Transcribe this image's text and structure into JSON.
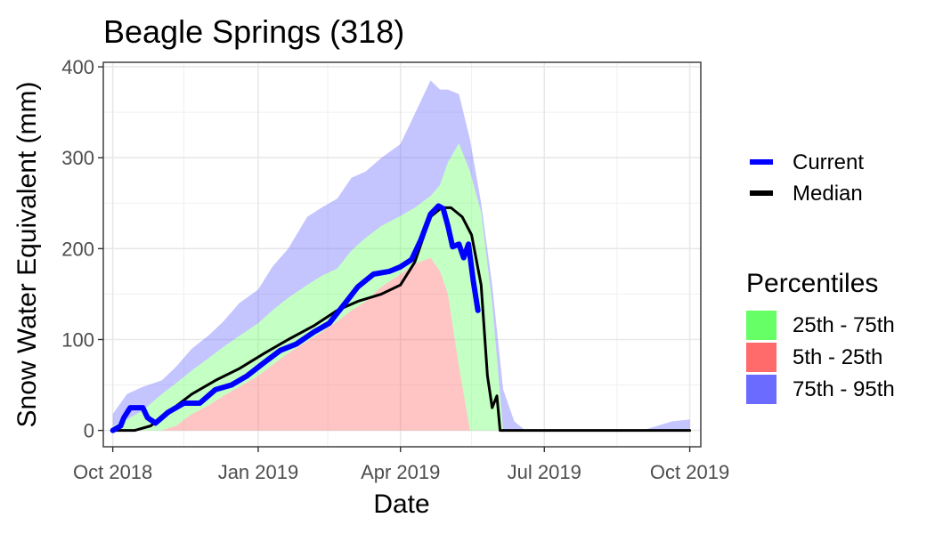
{
  "chart_data": {
    "type": "area",
    "title": "Beagle Springs (318)",
    "xlabel": "Date",
    "ylabel": "Snow Water Equivalent (mm)",
    "xlim": [
      "2018-09-25",
      "2019-10-08"
    ],
    "ylim": [
      -18,
      405
    ],
    "x_ticks": [
      {
        "date": "2018-10-01",
        "label": "Oct 2018"
      },
      {
        "date": "2019-01-01",
        "label": "Jan 2019"
      },
      {
        "date": "2019-04-01",
        "label": "Apr 2019"
      },
      {
        "date": "2019-07-01",
        "label": "Jul 2019"
      },
      {
        "date": "2019-10-01",
        "label": "Oct 2019"
      }
    ],
    "x_minor_ticks": [
      "2018-11-15",
      "2019-02-14",
      "2019-05-16",
      "2019-08-16"
    ],
    "y_ticks": [
      0,
      100,
      200,
      300,
      400
    ],
    "y_minor_ticks": [
      50,
      150,
      250,
      350
    ],
    "grid": true,
    "legend_position": "right",
    "x": [
      "2018-10-01",
      "2018-10-10",
      "2018-10-20",
      "2018-11-01",
      "2018-11-10",
      "2018-11-20",
      "2018-12-01",
      "2018-12-10",
      "2018-12-20",
      "2019-01-01",
      "2019-01-10",
      "2019-01-20",
      "2019-02-01",
      "2019-02-10",
      "2019-02-20",
      "2019-03-01",
      "2019-03-10",
      "2019-03-20",
      "2019-04-01",
      "2019-04-10",
      "2019-04-20",
      "2019-04-26",
      "2019-05-01",
      "2019-05-08",
      "2019-05-15",
      "2019-05-22",
      "2019-05-29",
      "2019-06-05",
      "2019-06-12",
      "2019-06-19",
      "2019-06-26",
      "2019-07-10",
      "2019-08-01",
      "2019-09-01",
      "2019-09-20",
      "2019-10-01"
    ],
    "bands": [
      {
        "name": "5th - 25th",
        "color": "#ff6b6b",
        "opacity": 0.4,
        "lower": [
          0,
          0,
          0,
          0,
          0,
          0,
          0,
          0,
          0,
          0,
          0,
          0,
          0,
          0,
          0,
          0,
          0,
          0,
          0,
          0,
          0,
          0,
          0,
          0,
          0,
          0,
          0,
          0,
          0,
          0,
          0,
          0,
          0,
          0,
          0,
          0
        ],
        "upper": [
          0,
          0,
          0,
          0,
          5,
          18,
          28,
          38,
          48,
          60,
          72,
          85,
          98,
          108,
          120,
          132,
          142,
          158,
          172,
          183,
          190,
          175,
          150,
          70,
          0,
          0,
          0,
          0,
          0,
          0,
          0,
          0,
          0,
          0,
          0,
          0
        ]
      },
      {
        "name": "25th - 75th",
        "color": "#6bff6b",
        "opacity": 0.4,
        "lower": [
          0,
          0,
          0,
          0,
          5,
          18,
          28,
          38,
          48,
          60,
          72,
          85,
          98,
          108,
          120,
          132,
          142,
          158,
          172,
          183,
          190,
          175,
          150,
          70,
          0,
          0,
          0,
          0,
          0,
          0,
          0,
          0,
          0,
          0,
          0,
          0
        ],
        "upper": [
          5,
          12,
          22,
          40,
          52,
          66,
          80,
          92,
          104,
          118,
          132,
          146,
          160,
          170,
          178,
          198,
          212,
          225,
          236,
          245,
          258,
          270,
          295,
          316,
          285,
          240,
          140,
          0,
          0,
          0,
          0,
          0,
          0,
          0,
          0,
          0
        ]
      },
      {
        "name": "75th - 95th",
        "color": "#6b6bff",
        "opacity": 0.4,
        "lower": [
          5,
          12,
          22,
          40,
          52,
          66,
          80,
          92,
          104,
          118,
          132,
          146,
          160,
          170,
          178,
          198,
          212,
          225,
          236,
          245,
          258,
          270,
          295,
          316,
          285,
          240,
          140,
          0,
          0,
          0,
          0,
          0,
          0,
          0,
          0,
          0
        ],
        "upper": [
          18,
          40,
          48,
          55,
          70,
          90,
          105,
          120,
          140,
          155,
          180,
          200,
          235,
          245,
          255,
          278,
          285,
          300,
          315,
          348,
          385,
          375,
          375,
          370,
          320,
          250,
          160,
          45,
          10,
          0,
          0,
          0,
          0,
          0,
          10,
          12
        ]
      }
    ],
    "series": [
      {
        "name": "Current",
        "color": "#0000ff",
        "width": 6,
        "x": [
          "2018-10-01",
          "2018-10-06",
          "2018-10-08",
          "2018-10-12",
          "2018-10-20",
          "2018-10-23",
          "2018-10-28",
          "2018-11-05",
          "2018-11-15",
          "2018-11-25",
          "2018-12-05",
          "2018-12-15",
          "2018-12-25",
          "2019-01-05",
          "2019-01-15",
          "2019-01-25",
          "2019-02-05",
          "2019-02-15",
          "2019-02-25",
          "2019-03-05",
          "2019-03-15",
          "2019-03-25",
          "2019-04-01",
          "2019-04-08",
          "2019-04-14",
          "2019-04-20",
          "2019-04-25",
          "2019-04-28",
          "2019-05-01",
          "2019-05-04",
          "2019-05-08",
          "2019-05-11",
          "2019-05-14",
          "2019-05-17",
          "2019-05-20"
        ],
        "y": [
          0,
          5,
          14,
          25,
          25,
          14,
          8,
          20,
          30,
          30,
          45,
          50,
          60,
          75,
          88,
          95,
          108,
          118,
          140,
          158,
          172,
          175,
          180,
          188,
          210,
          238,
          247,
          244,
          225,
          202,
          205,
          190,
          205,
          165,
          132
        ]
      },
      {
        "name": "Median",
        "color": "#000000",
        "width": 3,
        "x": [
          "2018-10-01",
          "2018-10-15",
          "2018-10-25",
          "2018-11-05",
          "2018-11-20",
          "2018-12-05",
          "2018-12-20",
          "2019-01-05",
          "2019-01-20",
          "2019-02-05",
          "2019-02-20",
          "2019-03-05",
          "2019-03-20",
          "2019-04-01",
          "2019-04-10",
          "2019-04-20",
          "2019-04-27",
          "2019-05-03",
          "2019-05-10",
          "2019-05-16",
          "2019-05-22",
          "2019-05-26",
          "2019-05-29",
          "2019-06-01",
          "2019-06-03",
          "2019-06-06",
          "2019-07-01",
          "2019-10-01"
        ],
        "y": [
          0,
          0,
          5,
          20,
          40,
          55,
          68,
          85,
          100,
          115,
          132,
          142,
          150,
          160,
          185,
          235,
          245,
          245,
          235,
          215,
          160,
          60,
          25,
          38,
          0,
          0,
          0,
          0
        ]
      }
    ],
    "legend": {
      "lines_title": "",
      "lines": [
        {
          "label": "Current",
          "color": "#0000ff"
        },
        {
          "label": "Median",
          "color": "#000000"
        }
      ],
      "bands_title": "Percentiles",
      "bands": [
        {
          "label": "25th - 75th",
          "color": "#66ff66"
        },
        {
          "label": "5th - 25th",
          "color": "#ff6b6b"
        },
        {
          "label": "75th - 95th",
          "color": "#6b6bff"
        }
      ]
    }
  }
}
